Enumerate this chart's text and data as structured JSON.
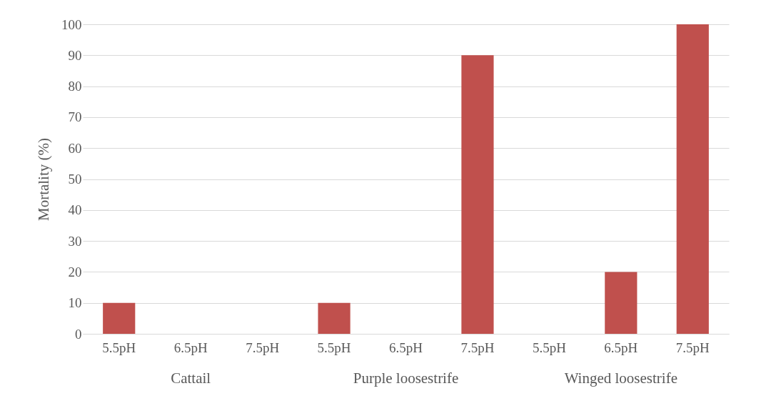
{
  "chart_data": {
    "type": "bar",
    "ylabel": "Mortality (%)",
    "categories": [
      "5.5pH",
      "6.5pH",
      "7.5pH",
      "5.5pH",
      "6.5pH",
      "7.5pH",
      "5.5pH",
      "6.5pH",
      "7.5pH"
    ],
    "values": [
      10,
      0,
      0,
      10,
      0,
      90,
      0,
      20,
      100
    ],
    "color": "#c0504d",
    "ylim": [
      0,
      100
    ],
    "yticks": [
      0,
      10,
      20,
      30,
      40,
      50,
      60,
      70,
      80,
      90,
      100
    ],
    "grid": "y",
    "annotations": [
      "Cattail",
      "Purple loosestrife",
      "Winged loosestrife"
    ]
  }
}
